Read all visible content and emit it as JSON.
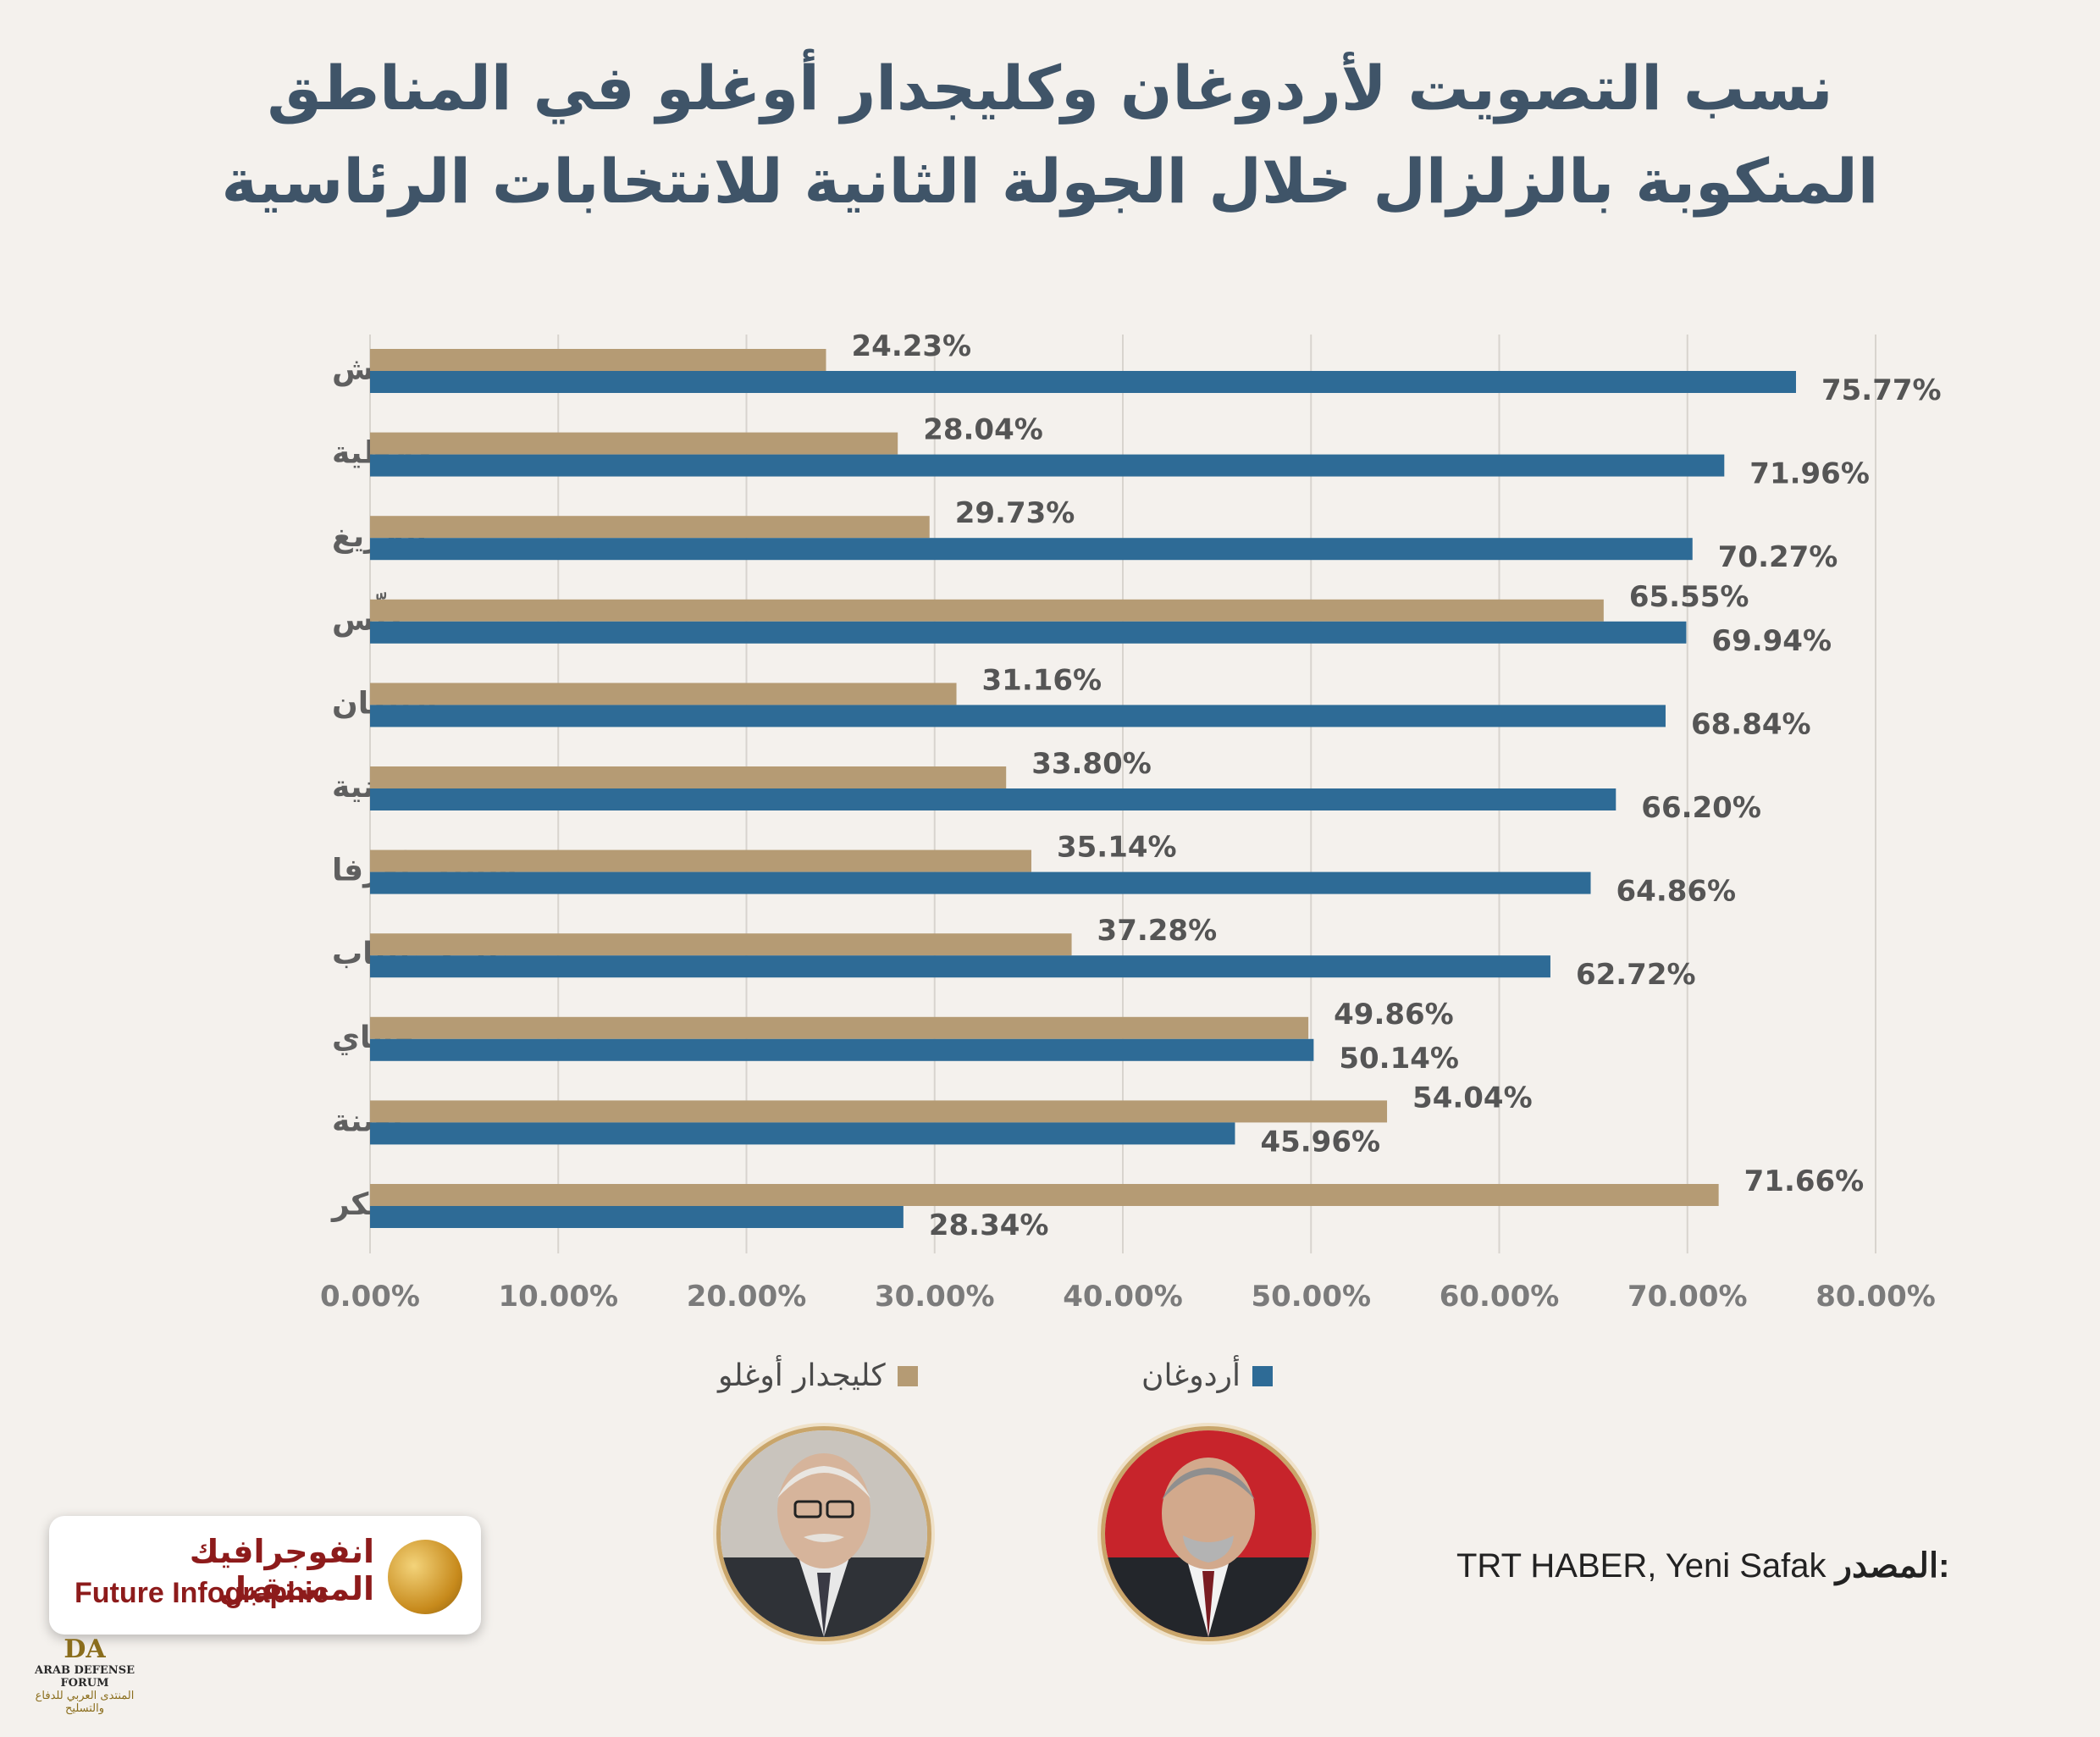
{
  "title": {
    "line1": "نسب التصويت لأردوغان وكليجدار أوغلو في المناطق",
    "line2": "المنكوبة بالزلزال خلال الجولة الثانية للانتخابات الرئاسية"
  },
  "colors": {
    "kilicdaroglu": "#b59b74",
    "erdogan": "#2e6b96",
    "title": "#3f5468",
    "background": "#f4f1ed"
  },
  "chart_data": {
    "type": "bar",
    "orientation": "horizontal",
    "categories": [
      "كهرمان مرعش",
      "ملاطية",
      "إيلازيغ",
      "كِلِّس",
      "أديامان",
      "عثمانية",
      "شانلي أورفا",
      "غازي عنتاب",
      "هاتاي",
      "أضنة",
      "ديار بكر"
    ],
    "series": [
      {
        "name": "كليجدار أوغلو",
        "values": [
          24.23,
          28.04,
          29.73,
          65.55,
          31.16,
          33.8,
          35.14,
          37.28,
          49.86,
          54.04,
          71.66
        ]
      },
      {
        "name": "أردوغان",
        "values": [
          75.77,
          71.96,
          70.27,
          69.94,
          68.84,
          66.2,
          64.86,
          62.72,
          50.14,
          45.96,
          28.34
        ]
      }
    ],
    "value_labels": [
      [
        "24.23%",
        "28.04%",
        "29.73%",
        "65.55%",
        "31.16%",
        "33.80%",
        "35.14%",
        "37.28%",
        "49.86%",
        "54.04%",
        "71.66%"
      ],
      [
        "75.77%",
        "71.96%",
        "70.27%",
        "69.94%",
        "68.84%",
        "66.20%",
        "64.86%",
        "62.72%",
        "50.14%",
        "45.96%",
        "28.34%"
      ]
    ],
    "x_ticks": [
      "0.00%",
      "10.00%",
      "20.00%",
      "30.00%",
      "40.00%",
      "50.00%",
      "60.00%",
      "70.00%",
      "80.00%"
    ],
    "xlim": [
      0,
      80
    ],
    "grid": "vertical",
    "legend_position": "bottom"
  },
  "source": {
    "label": "المصدر:",
    "text": "TRT HABER, Yeni Safak"
  },
  "logo": {
    "arabic": "انفوجرافيك المستقبل",
    "english": "Future Infographic"
  },
  "forum_logo": {
    "mark": "DA",
    "name": "ARAB DEFENSE FORUM",
    "arabic": "المنتدى العربي للدفاع والتسليح"
  },
  "portraits": [
    {
      "icon": "kilicdaroglu-portrait"
    },
    {
      "icon": "erdogan-portrait"
    }
  ]
}
